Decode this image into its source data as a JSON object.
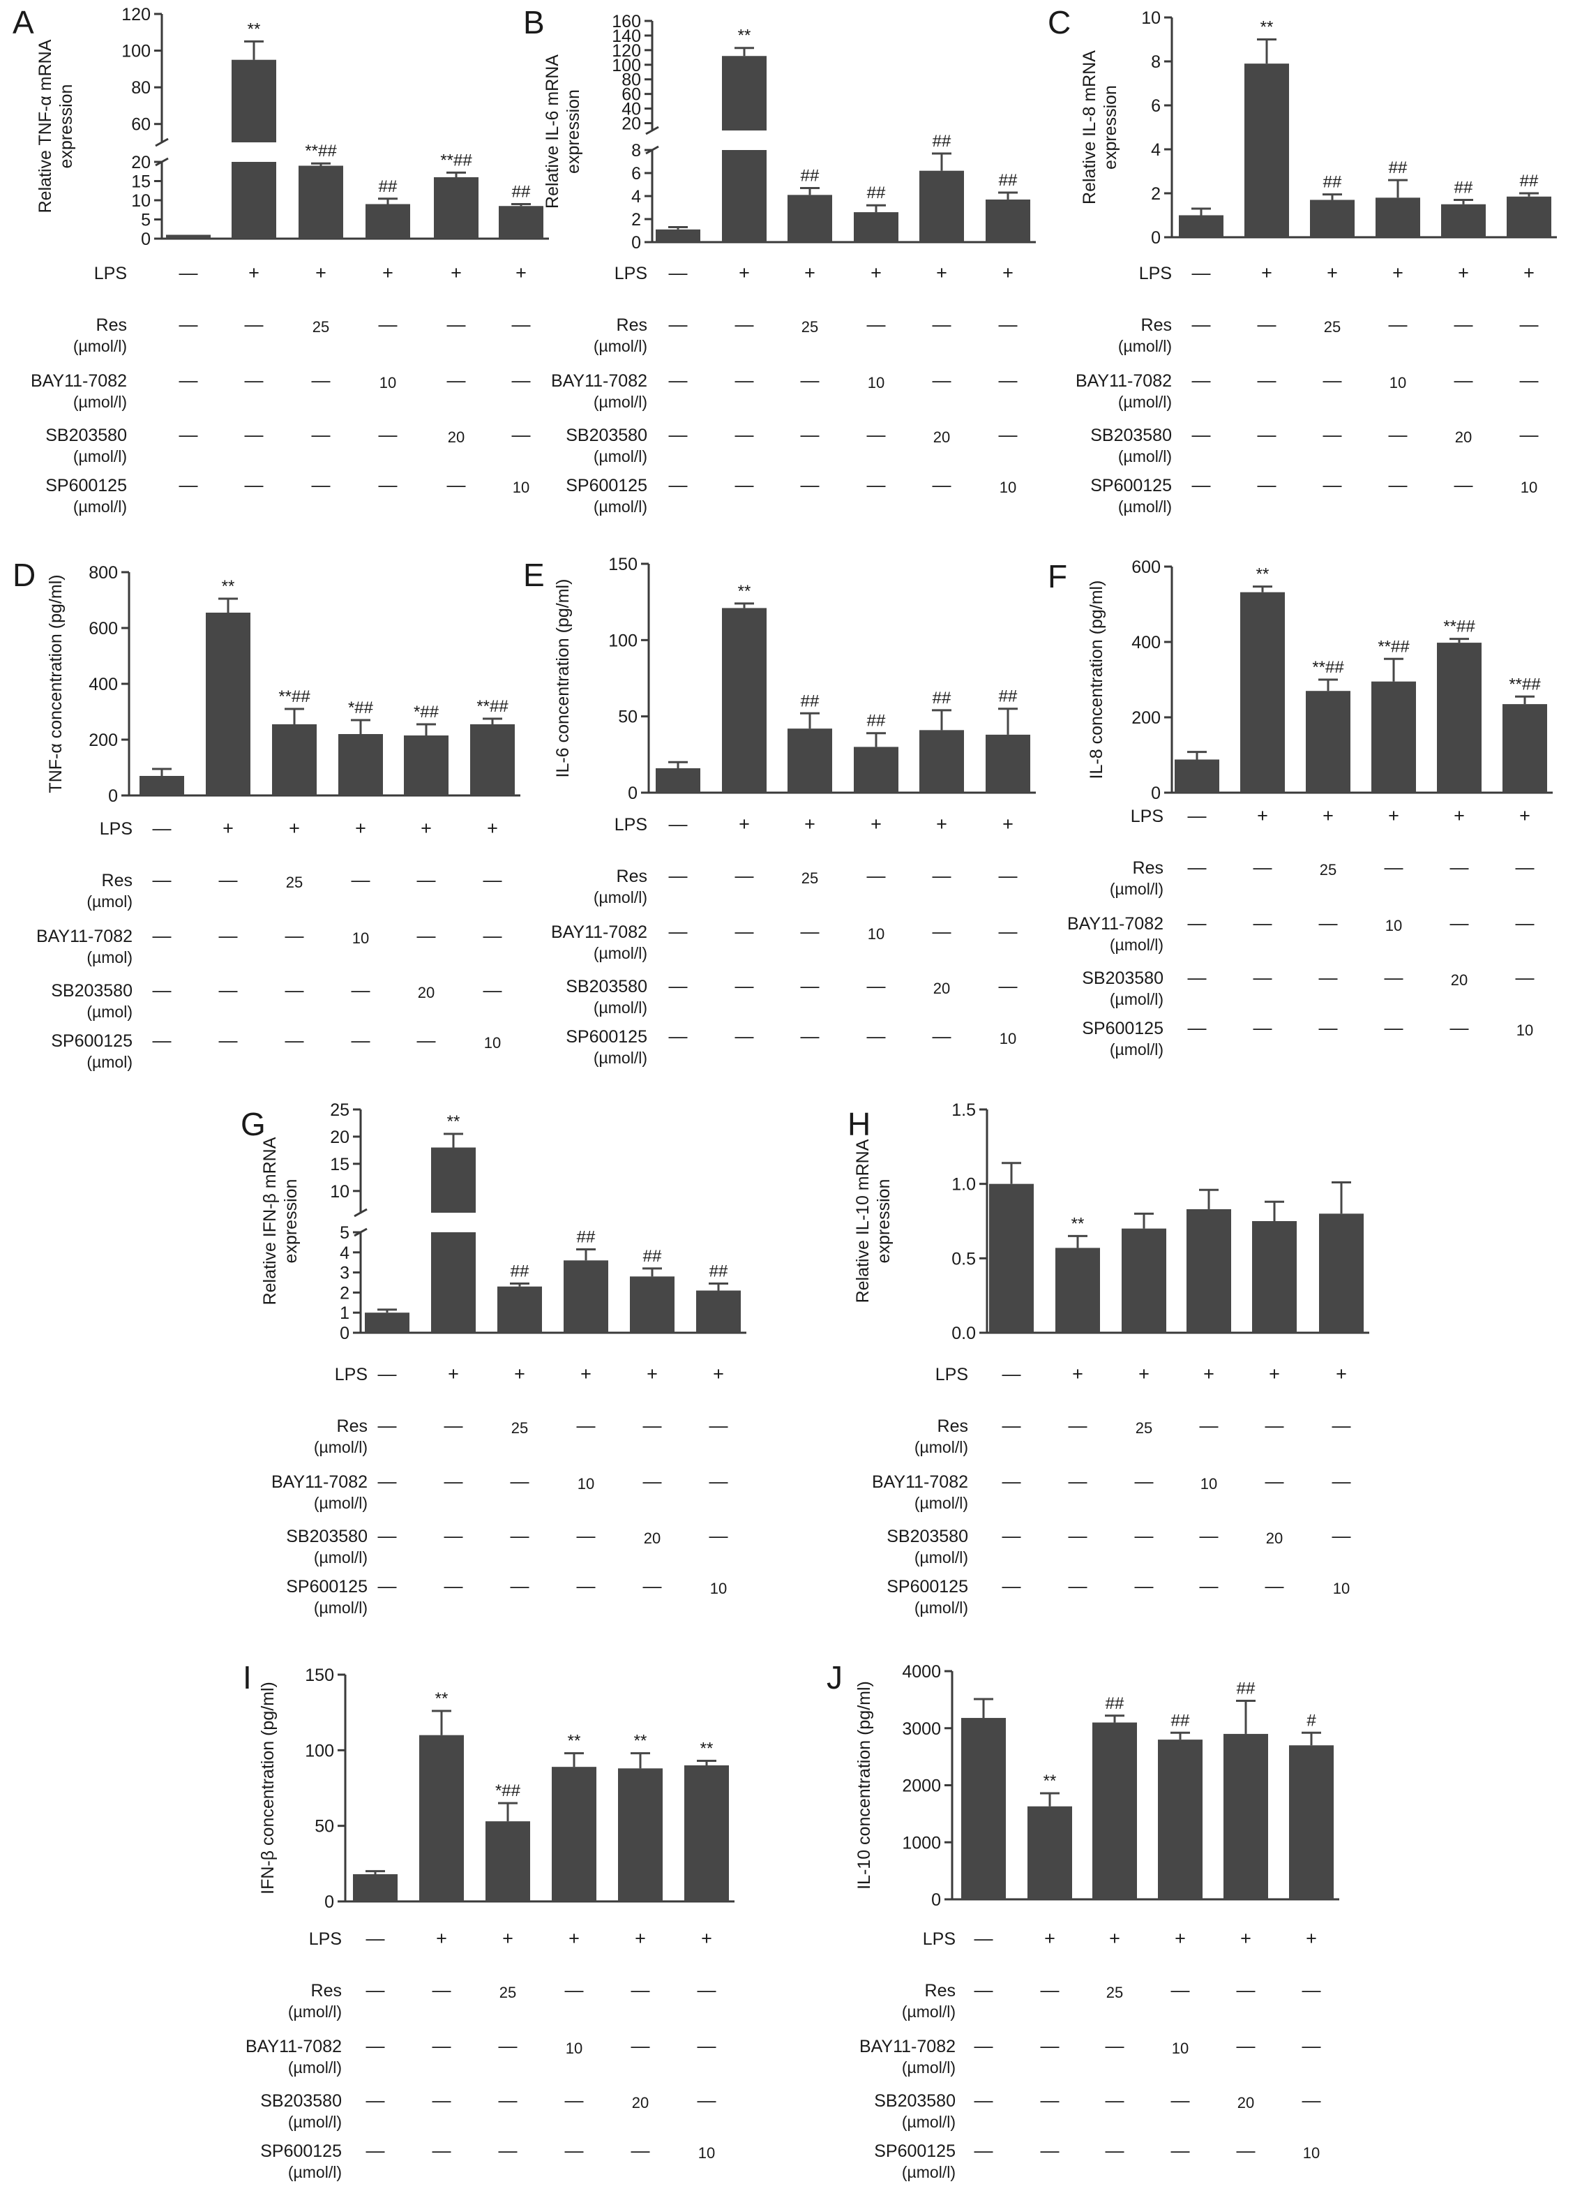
{
  "figure": {
    "colors": {
      "bar": "#474747",
      "axis": "#3a3a3a",
      "text": "#1a1a1a"
    },
    "row_labels": [
      "LPS",
      "Res",
      "BAY11-7082",
      "SB203580",
      "SP600125"
    ],
    "unit_umol_l": "(µmol/l)",
    "unit_umol": "(µmol)",
    "lps_values": [
      "—",
      "+",
      "+",
      "+",
      "+",
      "+"
    ],
    "res_values": [
      "—",
      "—",
      "25",
      "—",
      "—",
      "—"
    ],
    "bay_values": [
      "—",
      "—",
      "—",
      "10",
      "—",
      "—"
    ],
    "sb_values": [
      "—",
      "—",
      "—",
      "—",
      "20",
      "—"
    ],
    "sp_values": [
      "—",
      "—",
      "—",
      "—",
      "—",
      "10"
    ]
  },
  "chart_data": [
    {
      "panel": "A",
      "type": "bar",
      "ylabel": [
        "Relative TNF-α mRNA",
        "expression"
      ],
      "broken_axis": true,
      "upper_ticks": [
        "60",
        "80",
        "100",
        "120"
      ],
      "upper_range": [
        50,
        120
      ],
      "lower_ticks": [
        "0",
        "5",
        "10",
        "15",
        "20"
      ],
      "lower_range": [
        0,
        20
      ],
      "values": [
        1,
        95,
        19,
        9,
        16,
        8.5
      ],
      "errors": [
        0,
        10,
        0.6,
        1.4,
        1.2,
        0.5
      ],
      "markers": [
        "",
        "**",
        "**##",
        "##",
        "**##",
        "##"
      ],
      "unit": "umol_l"
    },
    {
      "panel": "B",
      "type": "bar",
      "ylabel": [
        "Relative IL-6 mRNA",
        "expression"
      ],
      "broken_axis": true,
      "upper_ticks": [
        "20",
        "40",
        "60",
        "80",
        "100",
        "120",
        "140",
        "160"
      ],
      "upper_range": [
        10,
        160
      ],
      "lower_ticks": [
        "0",
        "2",
        "4",
        "6",
        "8"
      ],
      "lower_range": [
        0,
        8
      ],
      "values": [
        1.1,
        112,
        4.1,
        2.6,
        6.2,
        3.7
      ],
      "errors": [
        0.2,
        11,
        0.6,
        0.6,
        1.5,
        0.6
      ],
      "markers": [
        "",
        "**",
        "##",
        "##",
        "##",
        "##"
      ],
      "unit": "umol_l"
    },
    {
      "panel": "C",
      "type": "bar",
      "ylabel": [
        "Relative IL-8 mRNA",
        "expression"
      ],
      "broken_axis": false,
      "ticks": [
        "0",
        "2",
        "4",
        "6",
        "8",
        "10"
      ],
      "ylim": [
        0,
        10
      ],
      "values": [
        1.0,
        7.9,
        1.7,
        1.8,
        1.5,
        1.85
      ],
      "errors": [
        0.3,
        1.1,
        0.25,
        0.8,
        0.2,
        0.15
      ],
      "markers": [
        "",
        "**",
        "##",
        "##",
        "##",
        "##"
      ],
      "unit": "umol_l"
    },
    {
      "panel": "D",
      "type": "bar",
      "ylabel": [
        "TNF-α concentration (pg/ml)"
      ],
      "broken_axis": false,
      "ticks": [
        "0",
        "200",
        "400",
        "600",
        "800"
      ],
      "ylim": [
        0,
        800
      ],
      "values": [
        70,
        655,
        255,
        220,
        215,
        255
      ],
      "errors": [
        25,
        50,
        55,
        50,
        40,
        20
      ],
      "markers": [
        "",
        "**",
        "**##",
        "*##",
        "*##",
        "**##"
      ],
      "unit": "umol"
    },
    {
      "panel": "E",
      "type": "bar",
      "ylabel": [
        "IL-6 concentration (pg/ml)"
      ],
      "broken_axis": false,
      "ticks": [
        "0",
        "50",
        "100",
        "150"
      ],
      "ylim": [
        0,
        150
      ],
      "values": [
        16,
        121,
        42,
        30,
        41,
        38
      ],
      "errors": [
        4,
        3,
        10,
        9,
        13,
        17
      ],
      "markers": [
        "",
        "**",
        "##",
        "##",
        "##",
        "##"
      ],
      "unit": "umol_l"
    },
    {
      "panel": "F",
      "type": "bar",
      "ylabel": [
        "IL-8 concentration (pg/ml)"
      ],
      "broken_axis": false,
      "ticks": [
        "0",
        "200",
        "400",
        "600"
      ],
      "ylim": [
        0,
        600
      ],
      "values": [
        88,
        532,
        270,
        295,
        398,
        235
      ],
      "errors": [
        20,
        15,
        30,
        60,
        10,
        20
      ],
      "markers": [
        "",
        "**",
        "**##",
        "**##",
        "**##",
        "**##"
      ],
      "unit": "umol_l"
    },
    {
      "panel": "G",
      "type": "bar",
      "ylabel": [
        "Relative IFN-β mRNA",
        "expression"
      ],
      "broken_axis": true,
      "upper_ticks": [
        "10",
        "15",
        "20",
        "25"
      ],
      "upper_range": [
        6,
        25
      ],
      "lower_ticks": [
        "0",
        "1",
        "2",
        "3",
        "4",
        "5"
      ],
      "lower_range": [
        0,
        5
      ],
      "values": [
        1.0,
        18,
        2.3,
        3.6,
        2.8,
        2.1
      ],
      "errors": [
        0.15,
        2.5,
        0.15,
        0.55,
        0.4,
        0.35
      ],
      "markers": [
        "",
        "**",
        "##",
        "##",
        "##",
        "##"
      ],
      "unit": "umol_l"
    },
    {
      "panel": "H",
      "type": "bar",
      "ylabel": [
        "Relative IL-10 mRNA",
        "expression"
      ],
      "broken_axis": false,
      "ticks": [
        "0.0",
        "0.5",
        "1.0",
        "1.5"
      ],
      "ylim": [
        0,
        1.5
      ],
      "values": [
        1.0,
        0.57,
        0.7,
        0.83,
        0.75,
        0.8
      ],
      "errors": [
        0.14,
        0.08,
        0.1,
        0.13,
        0.13,
        0.21
      ],
      "markers": [
        "",
        "**",
        "",
        "",
        "",
        ""
      ],
      "unit": "umol_l"
    },
    {
      "panel": "I",
      "type": "bar",
      "ylabel": [
        "IFN-β concentration (pg/ml)"
      ],
      "broken_axis": false,
      "ticks": [
        "0",
        "50",
        "100",
        "150"
      ],
      "ylim": [
        0,
        150
      ],
      "values": [
        18,
        110,
        53,
        89,
        88,
        90
      ],
      "errors": [
        2,
        16,
        12,
        9,
        10,
        3
      ],
      "markers": [
        "",
        "**",
        "*##",
        "**",
        "**",
        "**"
      ],
      "unit": "umol_l"
    },
    {
      "panel": "J",
      "type": "bar",
      "ylabel": [
        "IL-10 concentration (pg/ml)"
      ],
      "broken_axis": false,
      "ticks": [
        "0",
        "1000",
        "2000",
        "3000",
        "4000"
      ],
      "ylim": [
        0,
        4000
      ],
      "values": [
        3180,
        1630,
        3100,
        2800,
        2900,
        2700
      ],
      "errors": [
        330,
        230,
        120,
        120,
        580,
        220
      ],
      "markers": [
        "",
        "**",
        "##",
        "##",
        "##",
        "#"
      ],
      "unit": "umol_l"
    }
  ]
}
